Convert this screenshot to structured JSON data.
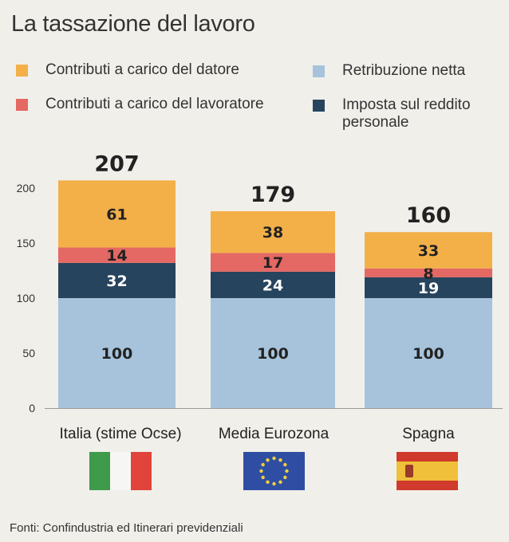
{
  "title": "La tassazione del lavoro",
  "source": "Fonti: Confindustria ed Itinerari previdenziali",
  "colors": {
    "Contributi a carico del datore": "#f3b049",
    "Contributi a carico del lavoratore": "#e46863",
    "Retribuzione netta": "#a7c3dc",
    "Imposta sul reddito personale": "#27445e"
  },
  "flags": {
    "italia": [
      "#3f9a4a",
      "#f6f6f4",
      "#e0443a"
    ],
    "eu": {
      "background": "#2f4ea3",
      "stars": "#f2cf3a"
    },
    "spagna": [
      "#cf3a2c",
      "#f0c03a",
      "#cf3a2c"
    ]
  },
  "chart_data": {
    "type": "bar",
    "stacked": true,
    "categories": [
      "Italia (stime Ocse)",
      "Media Eurozona",
      "Spagna"
    ],
    "totals": [
      "207",
      "179",
      "160"
    ],
    "yticks": [
      "0",
      "50",
      "100",
      "150",
      "200"
    ],
    "ylim": [
      0,
      210
    ],
    "legend": [
      "Contributi a carico del datore",
      "Retribuzione netta",
      "Contributi a carico del lavoratore",
      "Imposta sul reddito personale"
    ],
    "series": [
      {
        "name": "Retribuzione netta",
        "values": [
          100,
          100,
          100
        ],
        "labels": [
          "100",
          "100",
          "100"
        ]
      },
      {
        "name": "Imposta sul reddito personale",
        "values": [
          32,
          24,
          19
        ],
        "labels": [
          "32",
          "24",
          "19"
        ]
      },
      {
        "name": "Contributi a carico del lavoratore",
        "values": [
          14,
          17,
          8
        ],
        "labels": [
          "14",
          "17",
          "8"
        ]
      },
      {
        "name": "Contributi a carico del datore",
        "values": [
          61,
          38,
          33
        ],
        "labels": [
          "61",
          "38",
          "33"
        ]
      }
    ]
  }
}
